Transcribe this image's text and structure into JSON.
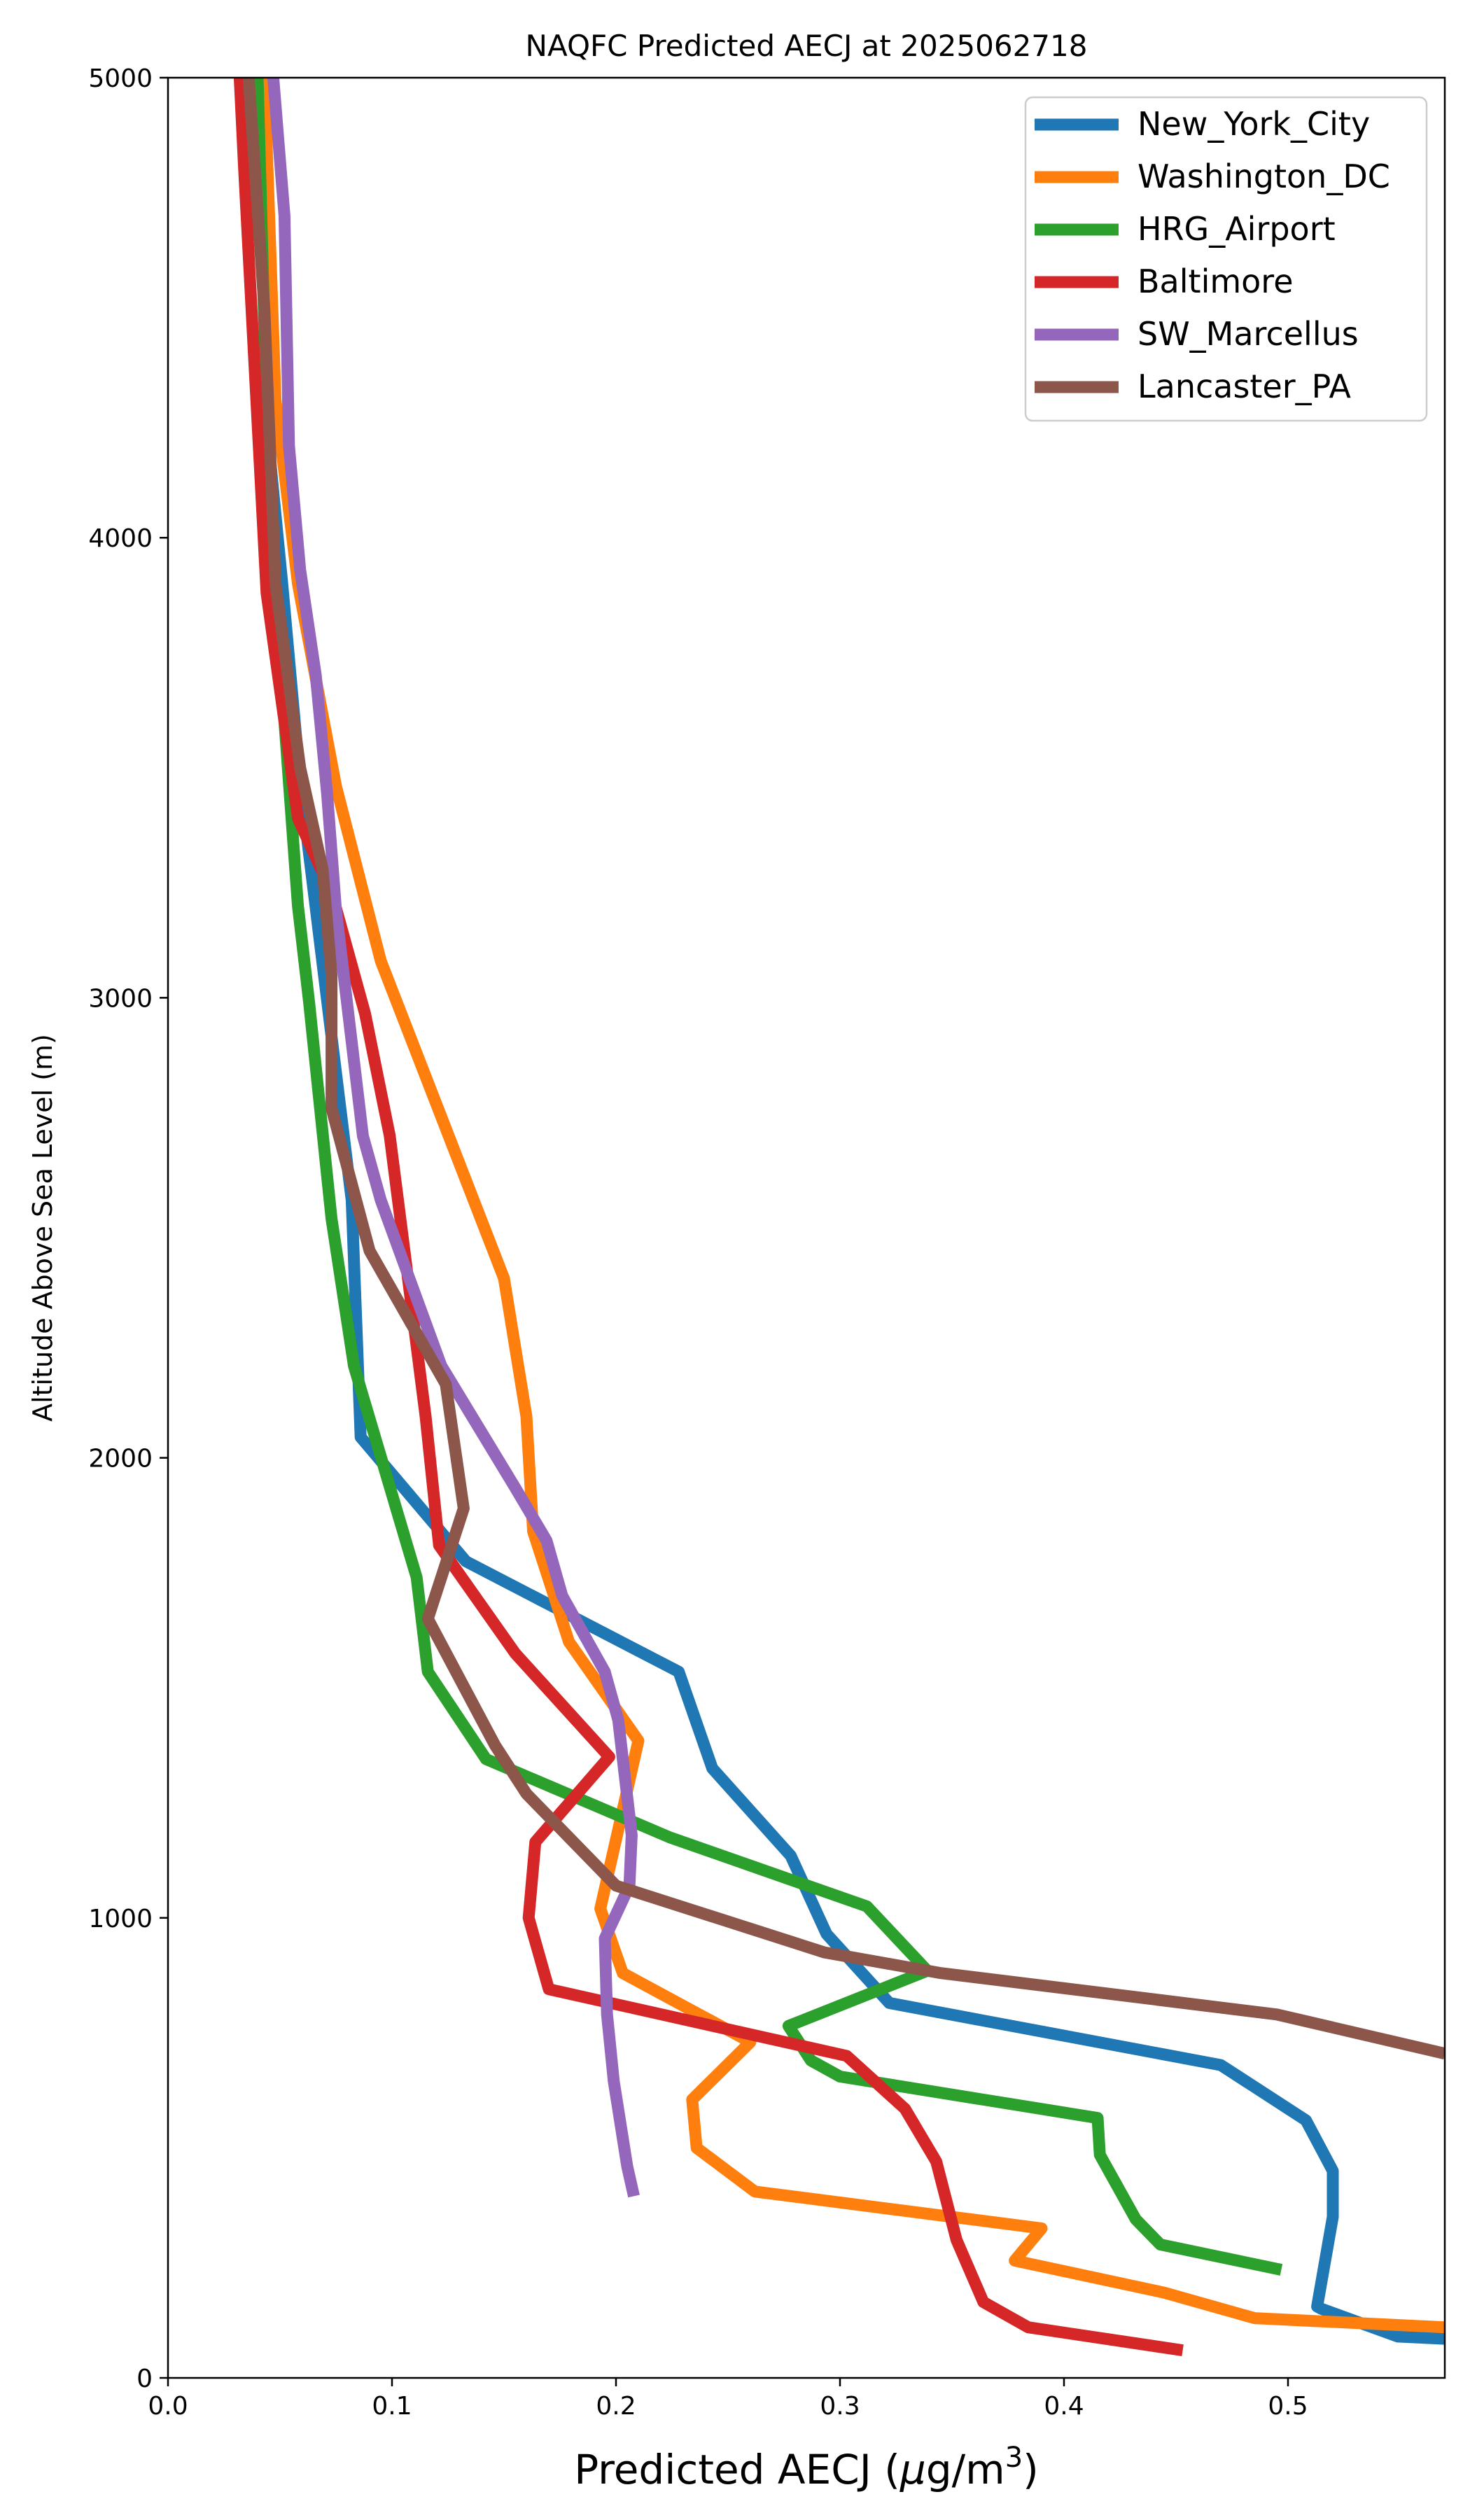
{
  "chart_data": {
    "type": "line",
    "title": "NAQFC Predicted AECJ at 2025062718",
    "xlabel": "Predicted AECJ (μg/m³)",
    "xlabel_main": "Predicted AECJ (",
    "xlabel_mu": "μ",
    "xlabel_unit": "g/m",
    "xlabel_sup": "3",
    "xlabel_close": ")",
    "ylabel": "Altitude Above Sea Level (m)",
    "xlim": [
      0.0,
      0.57
    ],
    "ylim": [
      0,
      5000
    ],
    "xticks": [
      0.0,
      0.1,
      0.2,
      0.3,
      0.4,
      0.5
    ],
    "xtick_labels": [
      "0.0",
      "0.1",
      "0.2",
      "0.3",
      "0.4",
      "0.5"
    ],
    "yticks": [
      0,
      1000,
      2000,
      3000,
      4000,
      5000
    ],
    "ytick_labels": [
      "0",
      "1000",
      "2000",
      "3000",
      "4000",
      "5000"
    ],
    "grid": false,
    "legend_position": "top-right",
    "series": [
      {
        "name": "New_York_City",
        "color": "#1f77b4",
        "points": [
          [
            0.57,
            85
          ],
          [
            0.549,
            90
          ],
          [
            0.515,
            150
          ],
          [
            0.513,
            155
          ],
          [
            0.52,
            350
          ],
          [
            0.52,
            450
          ],
          [
            0.508,
            560
          ],
          [
            0.47,
            680
          ],
          [
            0.322,
            815
          ],
          [
            0.294,
            965
          ],
          [
            0.278,
            1135
          ],
          [
            0.243,
            1325
          ],
          [
            0.228,
            1535
          ],
          [
            0.133,
            1775
          ],
          [
            0.086,
            2045
          ],
          [
            0.082,
            2560
          ],
          [
            0.059,
            3470
          ],
          [
            0.051,
            3900
          ],
          [
            0.045,
            4200
          ],
          [
            0.04,
            5000
          ]
        ]
      },
      {
        "name": "Washington_DC",
        "color": "#ff7f0e",
        "points": [
          [
            0.57,
            110
          ],
          [
            0.485,
            130
          ],
          [
            0.445,
            185
          ],
          [
            0.378,
            255
          ],
          [
            0.39,
            325
          ],
          [
            0.262,
            405
          ],
          [
            0.236,
            500
          ],
          [
            0.234,
            605
          ],
          [
            0.26,
            730
          ],
          [
            0.203,
            880
          ],
          [
            0.193,
            1020
          ],
          [
            0.21,
            1385
          ],
          [
            0.179,
            1600
          ],
          [
            0.163,
            1840
          ],
          [
            0.16,
            2090
          ],
          [
            0.15,
            2390
          ],
          [
            0.095,
            3080
          ],
          [
            0.075,
            3460
          ],
          [
            0.058,
            3900
          ],
          [
            0.048,
            4300
          ],
          [
            0.043,
            5000
          ]
        ]
      },
      {
        "name": "HRG_Airport",
        "color": "#2ca02c",
        "points": [
          [
            0.497,
            235
          ],
          [
            0.443,
            290
          ],
          [
            0.432,
            345
          ],
          [
            0.416,
            485
          ],
          [
            0.415,
            565
          ],
          [
            0.3,
            655
          ],
          [
            0.287,
            690
          ],
          [
            0.277,
            765
          ],
          [
            0.339,
            885
          ],
          [
            0.312,
            1025
          ],
          [
            0.224,
            1175
          ],
          [
            0.142,
            1345
          ],
          [
            0.116,
            1535
          ],
          [
            0.111,
            1740
          ],
          [
            0.083,
            2200
          ],
          [
            0.073,
            2520
          ],
          [
            0.063,
            2990
          ],
          [
            0.058,
            3200
          ],
          [
            0.052,
            3600
          ],
          [
            0.045,
            4100
          ],
          [
            0.04,
            5000
          ]
        ]
      },
      {
        "name": "Baltimore",
        "color": "#d62728",
        "points": [
          [
            0.453,
            60
          ],
          [
            0.384,
            110
          ],
          [
            0.364,
            165
          ],
          [
            0.352,
            300
          ],
          [
            0.343,
            470
          ],
          [
            0.329,
            585
          ],
          [
            0.303,
            700
          ],
          [
            0.17,
            845
          ],
          [
            0.161,
            1000
          ],
          [
            0.164,
            1165
          ],
          [
            0.197,
            1350
          ],
          [
            0.155,
            1575
          ],
          [
            0.121,
            1810
          ],
          [
            0.115,
            2090
          ],
          [
            0.099,
            2700
          ],
          [
            0.088,
            2965
          ],
          [
            0.073,
            3230
          ],
          [
            0.058,
            3390
          ],
          [
            0.044,
            3880
          ],
          [
            0.034,
            4800
          ],
          [
            0.032,
            5000
          ]
        ]
      },
      {
        "name": "SW_Marcellus",
        "color": "#9467bd",
        "points": [
          [
            0.208,
            395
          ],
          [
            0.205,
            460
          ],
          [
            0.199,
            645
          ],
          [
            0.196,
            790
          ],
          [
            0.195,
            955
          ],
          [
            0.206,
            1070
          ],
          [
            0.207,
            1180
          ],
          [
            0.201,
            1430
          ],
          [
            0.195,
            1535
          ],
          [
            0.176,
            1700
          ],
          [
            0.169,
            1820
          ],
          [
            0.155,
            1935
          ],
          [
            0.122,
            2200
          ],
          [
            0.095,
            2560
          ],
          [
            0.087,
            2700
          ],
          [
            0.075,
            3190
          ],
          [
            0.071,
            3445
          ],
          [
            0.066,
            3700
          ],
          [
            0.059,
            3930
          ],
          [
            0.054,
            4200
          ],
          [
            0.052,
            4700
          ],
          [
            0.047,
            5000
          ]
        ]
      },
      {
        "name": "Lancaster_PA",
        "color": "#8c564b",
        "points": [
          [
            0.57,
            705
          ],
          [
            0.495,
            790
          ],
          [
            0.345,
            880
          ],
          [
            0.293,
            925
          ],
          [
            0.2,
            1070
          ],
          [
            0.16,
            1270
          ],
          [
            0.146,
            1375
          ],
          [
            0.116,
            1650
          ],
          [
            0.132,
            1890
          ],
          [
            0.124,
            2160
          ],
          [
            0.09,
            2450
          ],
          [
            0.073,
            2760
          ],
          [
            0.073,
            3050
          ],
          [
            0.069,
            3280
          ],
          [
            0.059,
            3500
          ],
          [
            0.048,
            3900
          ],
          [
            0.043,
            4500
          ],
          [
            0.036,
            5000
          ]
        ]
      }
    ]
  }
}
